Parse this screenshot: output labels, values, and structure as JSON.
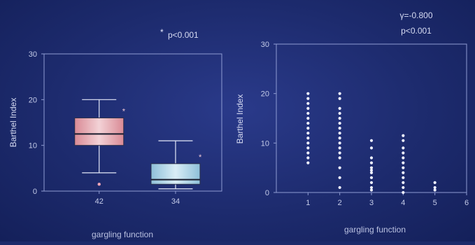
{
  "chart_data": [
    {
      "type": "box",
      "ylabel": "Barthel Index",
      "xlabel": "gargling function",
      "annotation": "p<0.001",
      "annotation_marker": "*",
      "categories": [
        "42",
        "34"
      ],
      "ylim": [
        0,
        30
      ],
      "yticks": [
        0,
        10,
        20,
        30
      ],
      "boxes": [
        {
          "label": "42",
          "min": 4,
          "q1": 10,
          "median": 12.5,
          "q3": 16,
          "max": 20,
          "outliers": [
            1.5
          ],
          "extremes": [
            17.5
          ],
          "color": "#e7a0a8"
        },
        {
          "label": "34",
          "min": 0.5,
          "q1": 1.5,
          "median": 2.5,
          "q3": 6,
          "max": 11,
          "outliers": [],
          "extremes": [
            7.5
          ],
          "color": "#a9d2e6"
        }
      ]
    },
    {
      "type": "scatter",
      "ylabel": "Barthel Index",
      "xlabel": "gargling function",
      "stats": [
        "γ=-0.800",
        "p<0.001"
      ],
      "xlim": [
        0,
        6
      ],
      "ylim": [
        0,
        30
      ],
      "xticks": [
        1,
        2,
        3,
        4,
        5,
        6
      ],
      "yticks": [
        0,
        10,
        20,
        30
      ],
      "points": [
        [
          1,
          20
        ],
        [
          1,
          19
        ],
        [
          1,
          18
        ],
        [
          1,
          17
        ],
        [
          1,
          16
        ],
        [
          1,
          15
        ],
        [
          1,
          14
        ],
        [
          1,
          13
        ],
        [
          1,
          12
        ],
        [
          1,
          11
        ],
        [
          1,
          10
        ],
        [
          1,
          9
        ],
        [
          1,
          8
        ],
        [
          1,
          7
        ],
        [
          1,
          6
        ],
        [
          2,
          20
        ],
        [
          2,
          19
        ],
        [
          2,
          17
        ],
        [
          2,
          16
        ],
        [
          2,
          15
        ],
        [
          2,
          14
        ],
        [
          2,
          13
        ],
        [
          2,
          12
        ],
        [
          2,
          11
        ],
        [
          2,
          10
        ],
        [
          2,
          9
        ],
        [
          2,
          8
        ],
        [
          2,
          7
        ],
        [
          2,
          5
        ],
        [
          2,
          3
        ],
        [
          2,
          1
        ],
        [
          3,
          10.5
        ],
        [
          3,
          9
        ],
        [
          3,
          7
        ],
        [
          3,
          6
        ],
        [
          3,
          5
        ],
        [
          3,
          4.5
        ],
        [
          3,
          4
        ],
        [
          3,
          3
        ],
        [
          3,
          2
        ],
        [
          3,
          1
        ],
        [
          3,
          0.5
        ],
        [
          4,
          11.5
        ],
        [
          4,
          10.5
        ],
        [
          4,
          9
        ],
        [
          4,
          8
        ],
        [
          4,
          7
        ],
        [
          4,
          6
        ],
        [
          4,
          5
        ],
        [
          4,
          4
        ],
        [
          4,
          3
        ],
        [
          4,
          2
        ],
        [
          4,
          1
        ],
        [
          4,
          0
        ],
        [
          5,
          2
        ],
        [
          5,
          1
        ],
        [
          5,
          0.5
        ]
      ]
    }
  ]
}
